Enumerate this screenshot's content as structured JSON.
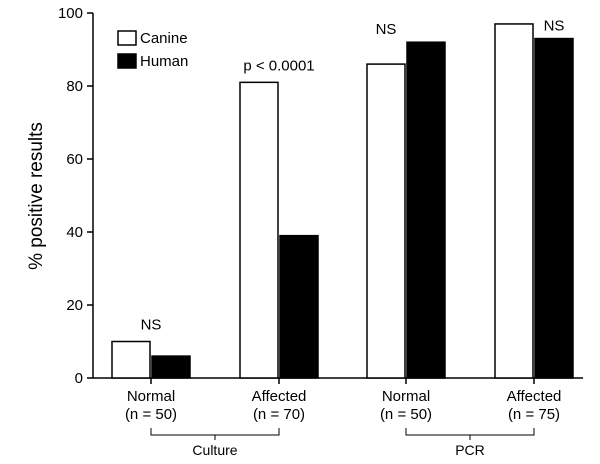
{
  "chart_data": {
    "type": "bar",
    "title": "",
    "xlabel": "",
    "ylabel": "% positive results",
    "ylim": [
      0,
      100
    ],
    "yticks": [
      "0",
      "20",
      "40",
      "60",
      "80",
      "100"
    ],
    "categories": [
      {
        "line1": "Normal",
        "line2": "(n = 50)"
      },
      {
        "line1": "Affected",
        "line2": "(n = 70)"
      },
      {
        "line1": "Normal",
        "line2": "(n = 50)"
      },
      {
        "line1": "Affected",
        "line2": "(n = 75)"
      }
    ],
    "series": [
      {
        "name": "Canine",
        "color": "#ffffff",
        "values": [
          10,
          81,
          86,
          97
        ]
      },
      {
        "name": "Human",
        "color": "#000000",
        "values": [
          6,
          39,
          92,
          93
        ]
      }
    ],
    "annotations": [
      "NS",
      "p < 0.0001",
      "NS",
      "NS"
    ],
    "groups": [
      {
        "label": "Culture",
        "categories": [
          0,
          1
        ]
      },
      {
        "label": "PCR",
        "categories": [
          2,
          3
        ]
      }
    ],
    "legend_position": "top-left",
    "grid": false
  }
}
